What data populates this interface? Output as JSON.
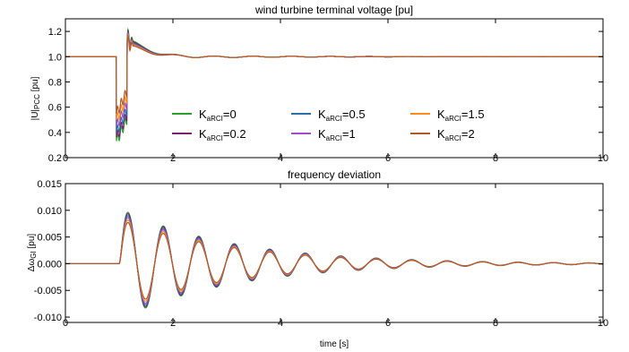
{
  "chart_data": [
    {
      "type": "line",
      "title": "wind turbine terminal voltage [pu]",
      "xlabel": "",
      "ylabel": "|U|PCC [pu]",
      "ylabel_main": "|U|",
      "ylabel_sub": "PCC",
      "ylabel_unit": " [pu]",
      "xlim": [
        0,
        10
      ],
      "ylim": [
        0.2,
        1.3
      ],
      "x_ticks": [
        "0",
        "2",
        "4",
        "6",
        "8",
        "10"
      ],
      "y_ticks": [
        "0.2",
        "0.4",
        "0.6",
        "0.8",
        "1.0",
        "1.2"
      ],
      "grid": false,
      "legend_placement": "lower-center",
      "model": {
        "pre": 1.0,
        "fault_start": 0.95,
        "fault_end": 1.15,
        "dip": [
          0.33,
          0.36,
          0.4,
          0.45,
          0.5,
          0.55
        ],
        "overshoot": [
          0.15,
          0.14,
          0.13,
          0.12,
          0.11,
          0.1
        ],
        "osc_amp": 0.012,
        "osc_period": 0.72
      },
      "series": [
        {
          "name": "K aRCI=0",
          "sym": "K",
          "sub": "aRCI",
          "val": "=0",
          "color": "#2ca02c"
        },
        {
          "name": "K aRCI=0.2",
          "sym": "K",
          "sub": "aRCI",
          "val": "=0.2",
          "color": "#7b1f6e"
        },
        {
          "name": "K aRCI=0.5",
          "sym": "K",
          "sub": "aRCI",
          "val": "=0.5",
          "color": "#2b6fa6"
        },
        {
          "name": "K aRCI=1",
          "sym": "K",
          "sub": "aRCI",
          "val": "=1",
          "color": "#9c4fc4"
        },
        {
          "name": "K aRCI=1.5",
          "sym": "K",
          "sub": "aRCI",
          "val": "=1.5",
          "color": "#ff8c1a"
        },
        {
          "name": "K aRCI=2",
          "sym": "K",
          "sub": "aRCI",
          "val": "=2",
          "color": "#b05a2a"
        }
      ]
    },
    {
      "type": "line",
      "title": "frequency deviation",
      "xlabel": "time [s]",
      "ylabel": "ΔωGI [pu]",
      "ylabel_main": "Δω",
      "ylabel_sub": "GI",
      "ylabel_unit": " [pu]",
      "xlim": [
        0,
        10
      ],
      "ylim": [
        -0.011,
        0.015
      ],
      "x_ticks": [
        "0",
        "2",
        "4",
        "6",
        "8",
        "10"
      ],
      "y_ticks": [
        "-0.010",
        "-0.005",
        "0.000",
        "0.005",
        "0.010",
        "0.015"
      ],
      "grid": false,
      "model": {
        "t0": 1.0,
        "period": 0.66,
        "decay": 0.48,
        "amps": [
          0.0105,
          0.0102,
          0.0098,
          0.0094,
          0.0089,
          0.0084
        ],
        "phase": 1.1
      },
      "series": [
        {
          "name": "K aRCI=0",
          "color": "#2ca02c"
        },
        {
          "name": "K aRCI=0.2",
          "color": "#7b1f6e"
        },
        {
          "name": "K aRCI=0.5",
          "color": "#2b6fa6"
        },
        {
          "name": "K aRCI=1",
          "color": "#9c4fc4"
        },
        {
          "name": "K aRCI=1.5",
          "color": "#ff8c1a"
        },
        {
          "name": "K aRCI=2",
          "color": "#b05a2a"
        }
      ]
    }
  ]
}
